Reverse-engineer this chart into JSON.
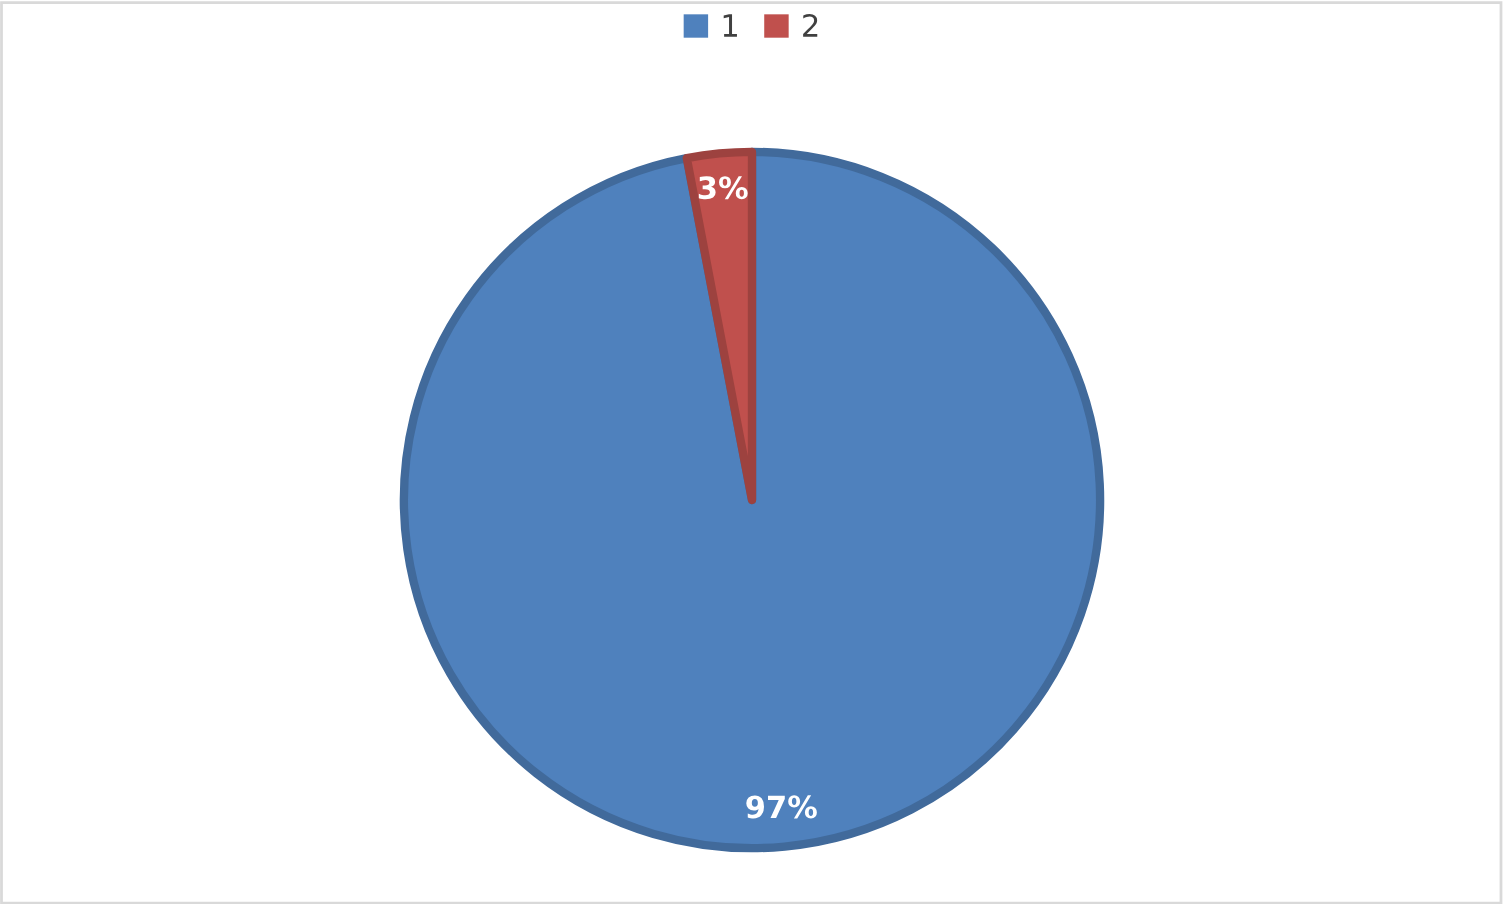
{
  "chart_data": {
    "type": "pie",
    "categories": [
      "1",
      "2"
    ],
    "values": [
      97,
      3
    ],
    "colors": [
      "#4f81bd",
      "#c0504d"
    ],
    "value_labels": [
      "97%",
      "3%"
    ],
    "legend": "top"
  }
}
